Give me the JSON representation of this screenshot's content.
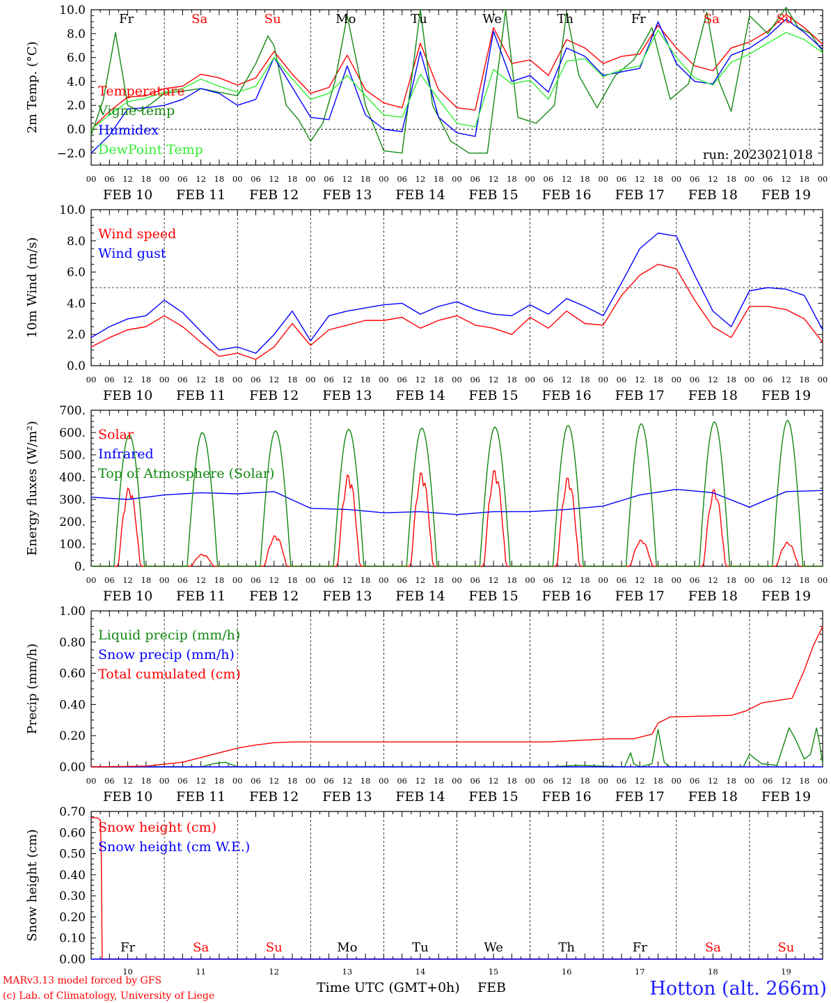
{
  "page": {
    "footer_credit_line1": "MARv3.13 model forced by GFS",
    "footer_credit_line2": "(c) Lab. of Climatology, University of Liege",
    "x_title": "Time UTC (GMT+0h)",
    "x_unit": "FEB",
    "station": "Hotton (alt. 266m)",
    "run_label": "run: 2023021018"
  },
  "colors": {
    "red": "#ff0000",
    "blue": "#0000ff",
    "green": "#008800",
    "lightgreen": "#33ee33",
    "darkgreen": "#118811"
  },
  "days": [
    {
      "date": "FEB 10",
      "num": "10",
      "name": "Fr",
      "weekend": false
    },
    {
      "date": "FEB 11",
      "num": "11",
      "name": "Sa",
      "weekend": true
    },
    {
      "date": "FEB 12",
      "num": "12",
      "name": "Su",
      "weekend": true
    },
    {
      "date": "FEB 13",
      "num": "13",
      "name": "Mo",
      "weekend": false
    },
    {
      "date": "FEB 14",
      "num": "14",
      "name": "Tu",
      "weekend": false
    },
    {
      "date": "FEB 15",
      "num": "15",
      "name": "We",
      "weekend": false
    },
    {
      "date": "FEB 16",
      "num": "16",
      "name": "Th",
      "weekend": false
    },
    {
      "date": "FEB 17",
      "num": "17",
      "name": "Fr",
      "weekend": false
    },
    {
      "date": "FEB 18",
      "num": "18",
      "name": "Sa",
      "weekend": true
    },
    {
      "date": "FEB 19",
      "num": "19",
      "name": "Su",
      "weekend": true
    }
  ],
  "hour_labels": [
    "00",
    "06",
    "12",
    "18"
  ],
  "chart_data": [
    {
      "type": "line",
      "ylabel": "2m Temp. (°C)",
      "ylim": [
        -3,
        10
      ],
      "yticks": [
        "−2.0",
        "0.0",
        "2.0",
        "4.0",
        "6.0",
        "8.0",
        "10.0"
      ],
      "ytick_values": [
        -2,
        0,
        2,
        4,
        6,
        8,
        10
      ],
      "ref_line": 0,
      "x_unit": "hours since FEB 10 00 UTC",
      "series": [
        {
          "name": "Temperature",
          "color": "#ff0000",
          "x": [
            0,
            6,
            12,
            18,
            24,
            30,
            36,
            42,
            48,
            54,
            60,
            66,
            72,
            78,
            84,
            90,
            96,
            102,
            108,
            114,
            120,
            126,
            132,
            138,
            144,
            150,
            156,
            162,
            168,
            174,
            180,
            186,
            192,
            198,
            204,
            210,
            216,
            222,
            228,
            234,
            240
          ],
          "values": [
            0.0,
            1.5,
            2.7,
            2.8,
            3.4,
            3.6,
            4.6,
            4.3,
            3.7,
            4.3,
            6.5,
            4.6,
            3.0,
            3.5,
            6.2,
            3.3,
            2.2,
            1.8,
            7.2,
            3.3,
            1.8,
            1.6,
            8.5,
            5.5,
            5.8,
            4.5,
            7.5,
            6.8,
            5.5,
            6.1,
            6.3,
            8.7,
            6.8,
            5.3,
            4.9,
            6.8,
            7.3,
            8.2,
            9.6,
            8.5,
            7.1
          ]
        },
        {
          "name": "Vigne temp",
          "color": "#118811",
          "x": [
            0,
            4,
            8,
            12,
            16,
            20,
            24,
            30,
            36,
            42,
            48,
            54,
            58,
            60,
            64,
            68,
            72,
            76,
            80,
            84,
            90,
            96,
            102,
            108,
            112,
            118,
            124,
            130,
            136,
            140,
            146,
            152,
            156,
            160,
            166,
            172,
            178,
            184,
            190,
            196,
            202,
            206,
            210,
            216,
            222,
            228,
            232,
            236,
            240
          ],
          "values": [
            -0.5,
            2.5,
            8.1,
            2.0,
            1.5,
            2.2,
            3.0,
            3.2,
            3.4,
            3.1,
            2.8,
            5.5,
            7.8,
            7.0,
            2.0,
            0.8,
            -1.0,
            0.5,
            4.0,
            9.5,
            2.0,
            -1.8,
            -2.0,
            10.0,
            2.0,
            -1.0,
            -2.0,
            -2.0,
            10.0,
            1.0,
            0.5,
            2.0,
            9.8,
            4.5,
            1.8,
            4.5,
            5.8,
            8.5,
            2.5,
            3.8,
            9.8,
            4.0,
            1.5,
            9.5,
            8.0,
            10.2,
            8.5,
            8.0,
            6.5
          ]
        },
        {
          "name": "Humidex",
          "color": "#0000ff",
          "x": [
            0,
            6,
            12,
            18,
            24,
            30,
            36,
            42,
            48,
            54,
            60,
            66,
            72,
            78,
            84,
            90,
            96,
            102,
            108,
            114,
            120,
            126,
            132,
            138,
            144,
            150,
            156,
            162,
            168,
            174,
            180,
            186,
            192,
            198,
            204,
            210,
            216,
            222,
            228,
            234,
            240
          ],
          "values": [
            -2.0,
            -0.5,
            1.7,
            1.8,
            2.0,
            2.5,
            3.4,
            3.0,
            2.0,
            2.5,
            6.0,
            3.5,
            1.0,
            0.8,
            5.3,
            1.2,
            0.0,
            -0.2,
            6.5,
            1.0,
            -0.3,
            -0.6,
            8.2,
            4.0,
            4.5,
            3.1,
            6.8,
            6.1,
            4.5,
            4.8,
            5.1,
            9.0,
            5.5,
            4.0,
            3.8,
            6.2,
            6.8,
            7.8,
            9.2,
            8.1,
            6.7
          ]
        },
        {
          "name": "DewPoint Temp",
          "color": "#33ee33",
          "x": [
            0,
            6,
            12,
            18,
            24,
            30,
            36,
            42,
            48,
            54,
            60,
            66,
            72,
            78,
            84,
            90,
            96,
            102,
            108,
            114,
            120,
            126,
            132,
            138,
            144,
            150,
            156,
            162,
            168,
            174,
            180,
            186,
            192,
            198,
            204,
            210,
            216,
            222,
            228,
            234,
            240
          ],
          "values": [
            0.0,
            1.2,
            2.3,
            2.6,
            3.1,
            3.4,
            4.2,
            3.6,
            3.1,
            3.6,
            6.0,
            4.2,
            2.5,
            3.0,
            4.5,
            2.8,
            1.2,
            1.0,
            4.6,
            2.5,
            0.5,
            0.2,
            5.0,
            3.8,
            4.1,
            2.5,
            5.7,
            5.9,
            4.4,
            5.0,
            5.3,
            8.3,
            6.0,
            4.3,
            3.7,
            5.6,
            6.3,
            7.2,
            8.1,
            7.5,
            6.4
          ]
        }
      ]
    },
    {
      "type": "line",
      "ylabel": "10m Wind (m/s)",
      "ylim": [
        0,
        10
      ],
      "yticks": [
        "0.0",
        "2.0",
        "4.0",
        "6.0",
        "8.0",
        "10.0"
      ],
      "ytick_values": [
        0,
        2,
        4,
        6,
        8,
        10
      ],
      "ref_line": 5,
      "x_unit": "hours since FEB 10 00 UTC",
      "series": [
        {
          "name": "Wind speed",
          "color": "#ff0000",
          "x": [
            0,
            6,
            12,
            18,
            24,
            30,
            36,
            42,
            48,
            54,
            60,
            66,
            72,
            78,
            84,
            90,
            96,
            102,
            108,
            114,
            120,
            126,
            132,
            138,
            144,
            150,
            156,
            162,
            168,
            174,
            180,
            186,
            192,
            198,
            204,
            210,
            216,
            222,
            228,
            234,
            240
          ],
          "values": [
            1.2,
            1.8,
            2.3,
            2.5,
            3.2,
            2.5,
            1.5,
            0.6,
            0.8,
            0.4,
            1.2,
            2.7,
            1.3,
            2.3,
            2.6,
            2.9,
            2.9,
            3.1,
            2.4,
            2.9,
            3.2,
            2.6,
            2.4,
            2.0,
            3.1,
            2.4,
            3.5,
            2.7,
            2.6,
            4.5,
            5.8,
            6.5,
            6.2,
            4.2,
            2.5,
            1.8,
            3.8,
            3.8,
            3.6,
            3.0,
            1.5
          ]
        },
        {
          "name": "Wind gust",
          "color": "#0000ff",
          "x": [
            0,
            6,
            12,
            18,
            24,
            30,
            36,
            42,
            48,
            54,
            60,
            66,
            72,
            78,
            84,
            90,
            96,
            102,
            108,
            114,
            120,
            126,
            132,
            138,
            144,
            150,
            156,
            162,
            168,
            174,
            180,
            186,
            192,
            198,
            204,
            210,
            216,
            222,
            228,
            234,
            240
          ],
          "values": [
            1.8,
            2.5,
            3.0,
            3.2,
            4.2,
            3.4,
            2.2,
            1.0,
            1.2,
            0.8,
            2.0,
            3.5,
            1.6,
            3.2,
            3.5,
            3.7,
            3.9,
            4.0,
            3.3,
            3.8,
            4.1,
            3.6,
            3.3,
            3.2,
            3.9,
            3.3,
            4.3,
            3.8,
            3.2,
            5.3,
            7.5,
            8.5,
            8.3,
            5.8,
            3.5,
            2.5,
            4.8,
            5.0,
            4.9,
            4.5,
            2.3
          ]
        }
      ]
    },
    {
      "type": "line",
      "ylabel": "Energy fluxes (W/m²)",
      "ylim": [
        0,
        700
      ],
      "yticks": [
        "0.",
        "100.",
        "200.",
        "300.",
        "400.",
        "500.",
        "600.",
        "700."
      ],
      "ytick_values": [
        0,
        100,
        200,
        300,
        400,
        500,
        600,
        700
      ],
      "x_unit": "hours since FEB 10 00 UTC",
      "series": [
        {
          "name": "Solar",
          "color": "#ff0000",
          "daily_peak": [
            360,
            55,
            140,
            420,
            430,
            440,
            405,
            120,
            350,
            110
          ]
        },
        {
          "name": "Infrared",
          "color": "#0000ff",
          "x": [
            0,
            12,
            24,
            36,
            48,
            60,
            72,
            84,
            96,
            108,
            120,
            132,
            144,
            156,
            168,
            180,
            192,
            204,
            216,
            228,
            240
          ],
          "values": [
            310,
            300,
            320,
            330,
            325,
            335,
            260,
            255,
            240,
            245,
            232,
            245,
            245,
            255,
            270,
            320,
            345,
            330,
            265,
            335,
            340
          ]
        },
        {
          "name": "Top of Atmosphere (Solar)",
          "color": "#118811",
          "daily_peak": [
            590,
            600,
            608,
            615,
            620,
            625,
            632,
            640,
            648,
            655
          ]
        }
      ]
    },
    {
      "type": "line",
      "ylabel": "Precip (mm/h)",
      "ylim": [
        0,
        1
      ],
      "yticks": [
        "0.00",
        "0.20",
        "0.40",
        "0.60",
        "0.80",
        "1.00"
      ],
      "ytick_values": [
        0,
        0.2,
        0.4,
        0.6,
        0.8,
        1.0
      ],
      "x_unit": "hours since FEB 10 00 UTC",
      "series": [
        {
          "name": "Liquid precip (mm/h)",
          "color": "#118811",
          "x": [
            0,
            36,
            40,
            44,
            48,
            150,
            160,
            175,
            177,
            178,
            180,
            184,
            186,
            188,
            190,
            192,
            214,
            216,
            218,
            220,
            225,
            229,
            231,
            234,
            236,
            238,
            239,
            240
          ],
          "values": [
            0,
            0,
            0.02,
            0.03,
            0,
            0,
            0.01,
            0,
            0.09,
            0.02,
            0,
            0.02,
            0.24,
            0.03,
            0,
            0,
            0,
            0.08,
            0.05,
            0.02,
            0.01,
            0.25,
            0.18,
            0.05,
            0.08,
            0.25,
            0.15,
            0.02
          ]
        },
        {
          "name": "Snow precip (mm/h)",
          "color": "#0000ff",
          "x": [
            0,
            240
          ],
          "values": [
            0,
            0
          ]
        },
        {
          "name": "Total cumulated (cm)",
          "color": "#ff0000",
          "x": [
            0,
            18,
            30,
            36,
            42,
            48,
            54,
            60,
            66,
            72,
            150,
            170,
            178,
            184,
            186,
            190,
            210,
            215,
            220,
            230,
            234,
            237,
            240
          ],
          "values": [
            0,
            0.005,
            0.03,
            0.06,
            0.09,
            0.12,
            0.14,
            0.155,
            0.16,
            0.16,
            0.16,
            0.18,
            0.18,
            0.21,
            0.28,
            0.32,
            0.33,
            0.36,
            0.41,
            0.44,
            0.62,
            0.78,
            0.9
          ]
        }
      ]
    },
    {
      "type": "line",
      "ylabel": "Snow height (cm)",
      "ylim": [
        0,
        0.7
      ],
      "yticks": [
        "0.00",
        "0.10",
        "0.20",
        "0.30",
        "0.40",
        "0.50",
        "0.60",
        "0.70"
      ],
      "ytick_values": [
        0,
        0.1,
        0.2,
        0.3,
        0.4,
        0.5,
        0.6,
        0.7
      ],
      "x_unit": "hours since FEB 10 00 UTC",
      "series": [
        {
          "name": "Snow height (cm)",
          "color": "#ff0000",
          "x": [
            0,
            2,
            3,
            3.3,
            3.6,
            240
          ],
          "values": [
            0.67,
            0.67,
            0.66,
            0.5,
            0,
            0
          ]
        },
        {
          "name": "Snow height (cm W.E.)",
          "color": "#0000ff",
          "x": [
            0,
            240
          ],
          "values": [
            0,
            0
          ]
        }
      ]
    }
  ]
}
